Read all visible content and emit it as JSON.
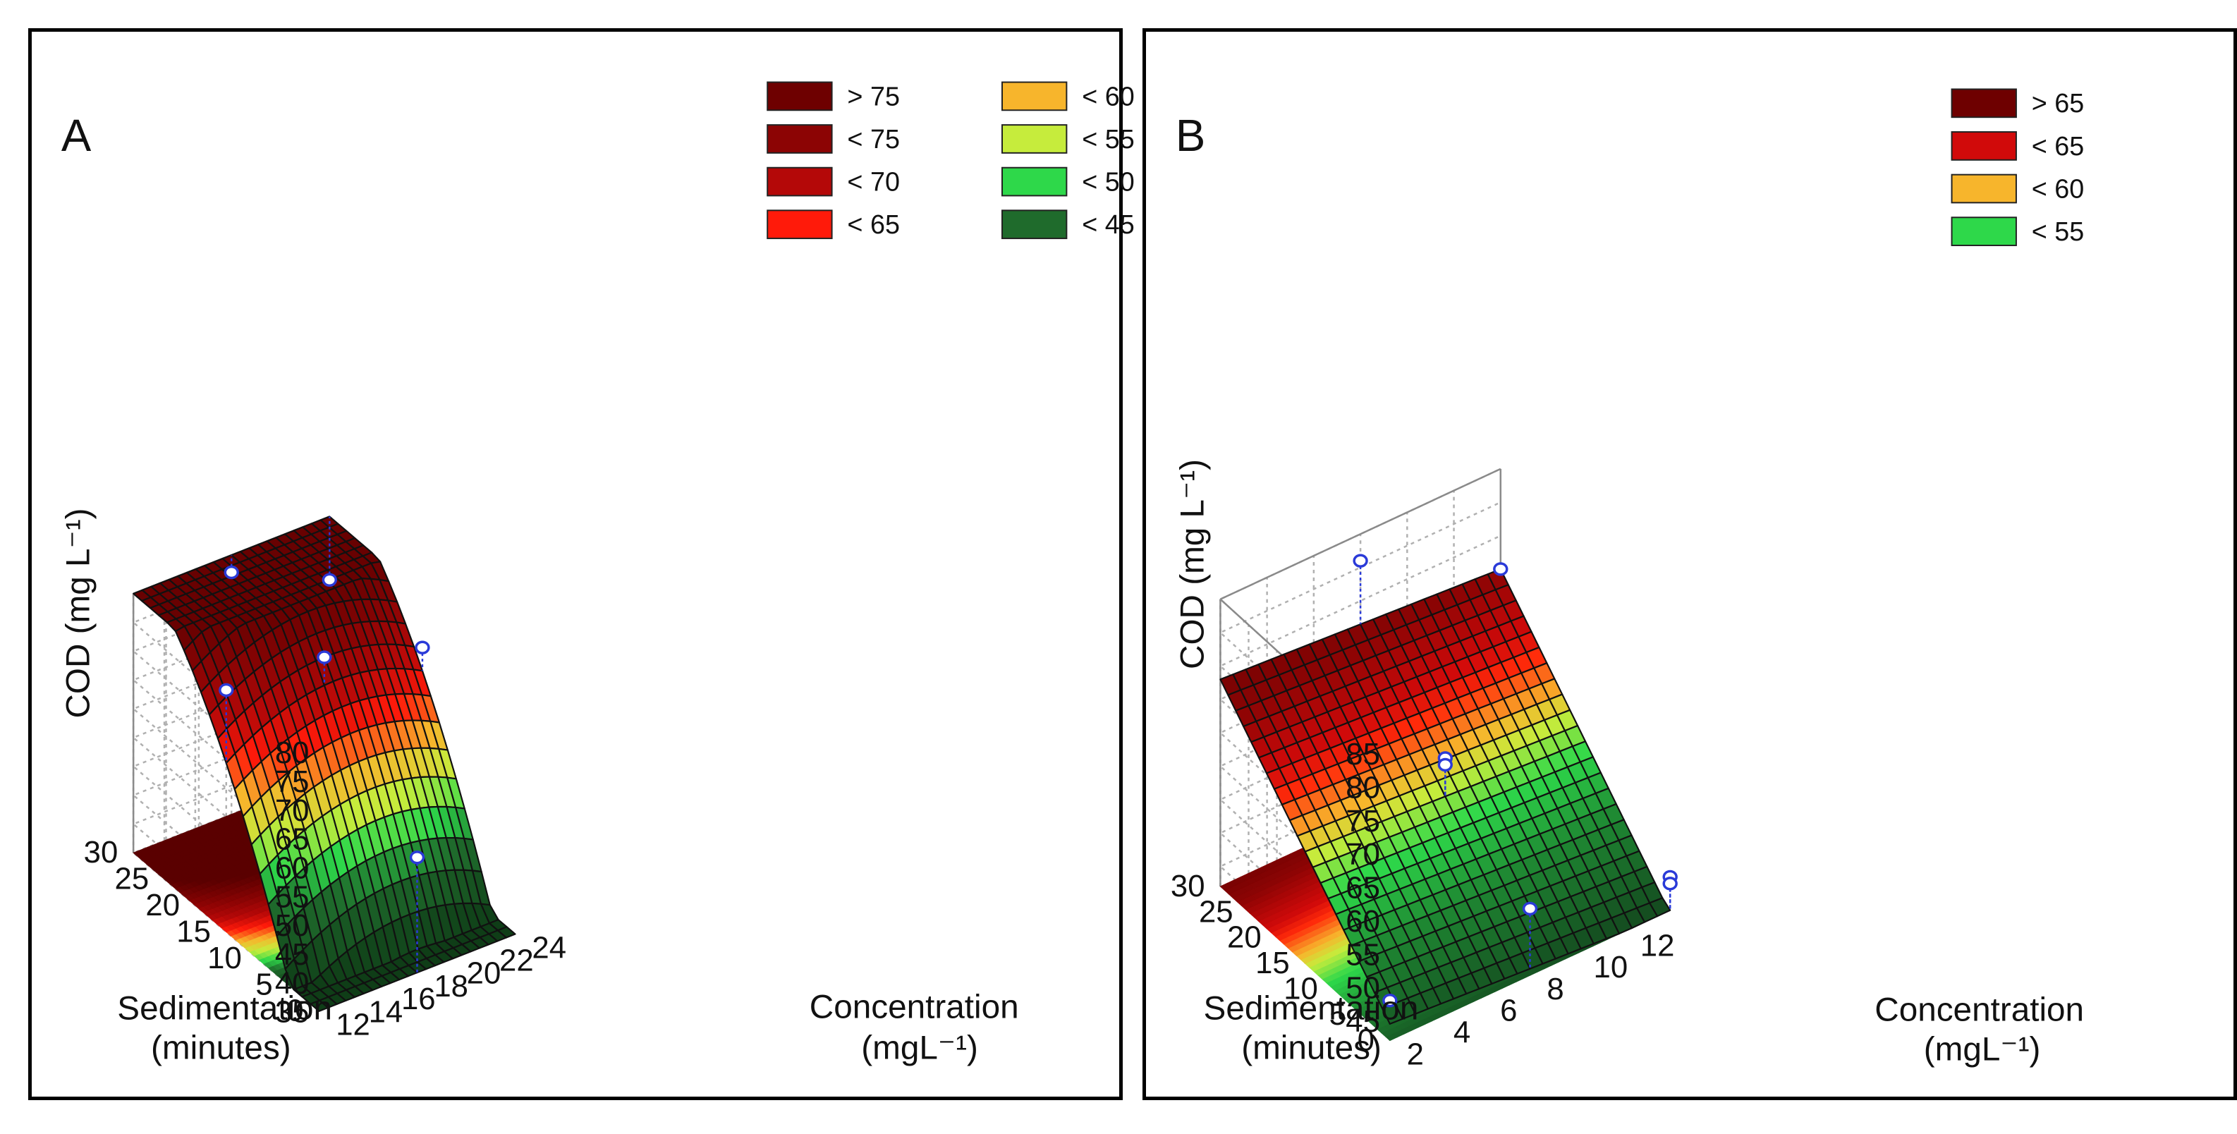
{
  "chart_data": [
    {
      "panel_label": "A",
      "type": "surface3d",
      "zlabel": "COD (mg L⁻¹)",
      "xlabel": [
        "Sedimentation",
        "(minutes)"
      ],
      "ylabel": [
        "Concentration",
        "(mgL⁻¹)"
      ],
      "x_ticks": [
        0,
        5,
        10,
        15,
        20,
        25,
        30
      ],
      "y_ticks": [
        12,
        14,
        16,
        18,
        20,
        22,
        24
      ],
      "z_ticks": [
        35,
        40,
        45,
        50,
        55,
        60,
        65,
        70,
        75,
        80
      ],
      "xlim": [
        0,
        30
      ],
      "ylim": [
        12,
        24
      ],
      "zlim": [
        35,
        80
      ],
      "legend": [
        {
          "label": "> 75",
          "color": "#6e0000"
        },
        {
          "label": "< 75",
          "color": "#8c0404"
        },
        {
          "label": "< 70",
          "color": "#b40808"
        },
        {
          "label": "< 65",
          "color": "#ff1a0a"
        },
        {
          "label": "< 60",
          "color": "#f7b52c"
        },
        {
          "label": "< 55",
          "color": "#c6ec3c"
        },
        {
          "label": "< 50",
          "color": "#2ed84a"
        },
        {
          "label": "< 45",
          "color": "#1f6b2c"
        }
      ],
      "points": [
        {
          "sedimentation": 15,
          "concentration": 12,
          "cod": 77
        },
        {
          "sedimentation": 30,
          "concentration": 18,
          "cod": 77
        },
        {
          "sedimentation": 15,
          "concentration": 18,
          "cod": 76
        },
        {
          "sedimentation": 0,
          "concentration": 18,
          "cod": 55
        },
        {
          "sedimentation": 30,
          "concentration": 24,
          "cod": 69
        },
        {
          "sedimentation": 15,
          "concentration": 24,
          "cod": 71
        }
      ]
    },
    {
      "panel_label": "B",
      "type": "surface3d",
      "zlabel": "COD (mg L⁻¹)",
      "xlabel": [
        "Sedimentation",
        "(minutes)"
      ],
      "ylabel": [
        "Concentration",
        "(mgL⁻¹)"
      ],
      "x_ticks": [
        0,
        5,
        10,
        15,
        20,
        25,
        30
      ],
      "y_ticks": [
        2,
        4,
        6,
        8,
        10,
        12
      ],
      "z_ticks": [
        45,
        50,
        55,
        60,
        65,
        70,
        75,
        80,
        85
      ],
      "xlim": [
        0,
        30
      ],
      "ylim": [
        2,
        14
      ],
      "zlim": [
        42,
        85
      ],
      "legend": [
        {
          "label": "> 65",
          "color": "#6e0000"
        },
        {
          "label": "< 65",
          "color": "#d10a0a"
        },
        {
          "label": "< 60",
          "color": "#f7b52c"
        },
        {
          "label": "< 55",
          "color": "#2ed84a"
        }
      ],
      "points": [
        {
          "sedimentation": 30,
          "concentration": 8,
          "cod": 81
        },
        {
          "sedimentation": 30,
          "concentration": 14,
          "cod": 70
        },
        {
          "sedimentation": 15,
          "concentration": 8,
          "cod": 63
        },
        {
          "sedimentation": 15,
          "concentration": 8,
          "cod": 62
        },
        {
          "sedimentation": 0,
          "concentration": 8,
          "cod": 52
        },
        {
          "sedimentation": 0,
          "concentration": 14,
          "cod": 47
        },
        {
          "sedimentation": 0,
          "concentration": 14,
          "cod": 46
        },
        {
          "sedimentation": 0,
          "concentration": 2,
          "cod": 48
        }
      ]
    }
  ]
}
